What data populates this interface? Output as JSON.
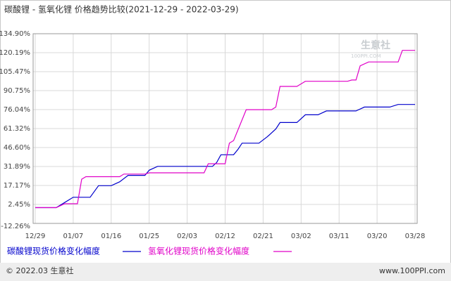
{
  "chart_data": {
    "type": "line",
    "title": "碳酸锂 - 氢氧化锂 价格趋势比较(2021-12-29 - 2022-03-29)",
    "watermark": [
      "生意社",
      "100PPI.COM"
    ],
    "footer_left": "© 2022.03 生意社",
    "footer_right": "www.100PPI.com",
    "xlim": [
      -0.5,
      90.5
    ],
    "xticks": [
      {
        "value": 0,
        "label": "12/29"
      },
      {
        "value": 9,
        "label": "01/07"
      },
      {
        "value": 18,
        "label": "01/16"
      },
      {
        "value": 27,
        "label": "01/25"
      },
      {
        "value": 36,
        "label": "02/03"
      },
      {
        "value": 45,
        "label": "02/12"
      },
      {
        "value": 54,
        "label": "02/21"
      },
      {
        "value": 63,
        "label": "03/02"
      },
      {
        "value": 72,
        "label": "03/11"
      },
      {
        "value": 81,
        "label": "03/20"
      },
      {
        "value": 90,
        "label": "03/28"
      }
    ],
    "ylim": [
      -12.26,
      134.9
    ],
    "yticks": [
      {
        "value": -12.26,
        "label": "-12.26%"
      },
      {
        "value": 2.45,
        "label": "2.45%"
      },
      {
        "value": 17.17,
        "label": "17.17%"
      },
      {
        "value": 31.89,
        "label": "31.89%"
      },
      {
        "value": 46.6,
        "label": "46.60%"
      },
      {
        "value": 61.32,
        "label": "61.32%"
      },
      {
        "value": 76.04,
        "label": "76.04%"
      },
      {
        "value": 90.75,
        "label": "90.75%"
      },
      {
        "value": 105.47,
        "label": "105.47%"
      },
      {
        "value": 120.19,
        "label": "120.19%"
      },
      {
        "value": 134.9,
        "label": "134.90%"
      }
    ],
    "grid": true,
    "series": [
      {
        "name": "碳酸锂现货价格变化幅度",
        "color": "#0000cc",
        "x": [
          0,
          5,
          7,
          9,
          13,
          15,
          18,
          20,
          22,
          26,
          27,
          29,
          42,
          43,
          44,
          47,
          48,
          49,
          53,
          55,
          57,
          58,
          62,
          64,
          67,
          69,
          76,
          78,
          84,
          86,
          90
        ],
        "values": [
          0,
          0,
          4,
          8,
          8,
          17,
          17,
          20,
          25,
          25,
          29,
          32,
          32,
          35,
          41,
          41,
          45,
          50,
          50,
          55,
          61,
          66,
          66,
          72,
          72,
          75,
          75,
          78,
          78,
          80,
          80
        ]
      },
      {
        "name": "氢氧化锂现货价格变化幅度",
        "color": "#e000c8",
        "x": [
          0,
          5,
          7,
          10,
          11,
          12,
          20,
          21,
          26,
          27,
          40,
          41,
          45,
          46,
          47,
          50,
          56,
          57,
          58,
          62,
          63,
          64,
          74,
          75,
          76,
          77,
          79,
          86,
          87,
          90
        ],
        "values": [
          0,
          0,
          3,
          3,
          22,
          24,
          24,
          26,
          26,
          27,
          27,
          34,
          34,
          50,
          52,
          76,
          76,
          78,
          94,
          94,
          96,
          98,
          98,
          99,
          99,
          110,
          113,
          113,
          122,
          122
        ]
      }
    ]
  }
}
